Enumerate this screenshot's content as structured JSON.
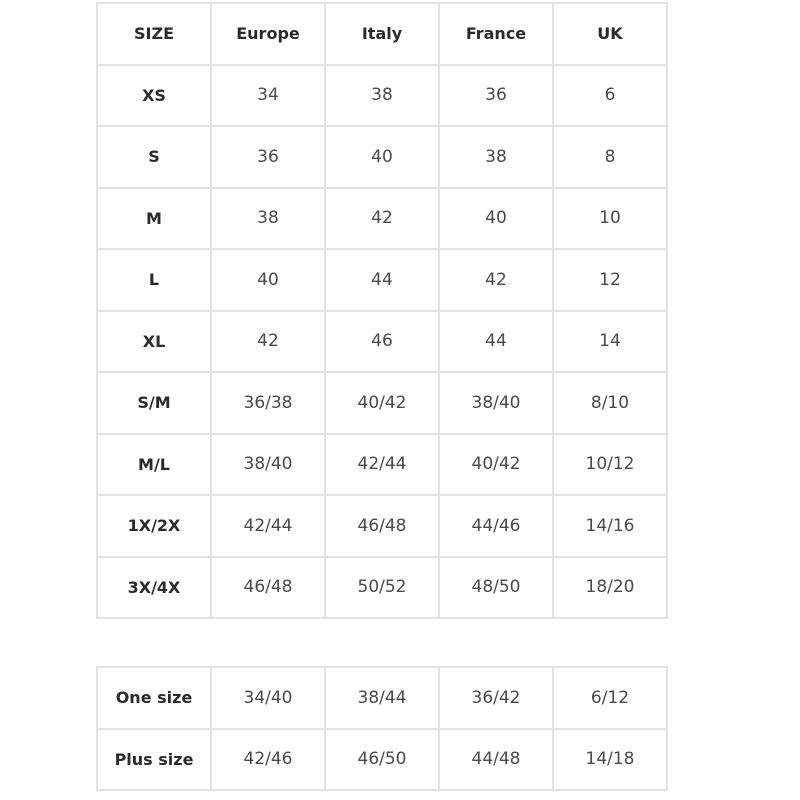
{
  "size_chart": {
    "headers": [
      "SIZE",
      "Europe",
      "Italy",
      "France",
      "UK"
    ],
    "rows": [
      [
        "XS",
        "34",
        "38",
        "36",
        "6"
      ],
      [
        "S",
        "36",
        "40",
        "38",
        "8"
      ],
      [
        "M",
        "38",
        "42",
        "40",
        "10"
      ],
      [
        "L",
        "40",
        "44",
        "42",
        "12"
      ],
      [
        "XL",
        "42",
        "46",
        "44",
        "14"
      ],
      [
        "S/M",
        "36/38",
        "40/42",
        "38/40",
        "8/10"
      ],
      [
        "M/L",
        "38/40",
        "42/44",
        "40/42",
        "10/12"
      ],
      [
        "1X/2X",
        "42/44",
        "46/48",
        "44/46",
        "14/16"
      ],
      [
        "3X/4X",
        "46/48",
        "50/52",
        "48/50",
        "18/20"
      ]
    ]
  },
  "one_plus_chart": {
    "rows": [
      [
        "One size",
        "34/40",
        "38/44",
        "36/42",
        "6/12"
      ],
      [
        "Plus size",
        "42/46",
        "46/50",
        "44/48",
        "14/18"
      ]
    ]
  }
}
